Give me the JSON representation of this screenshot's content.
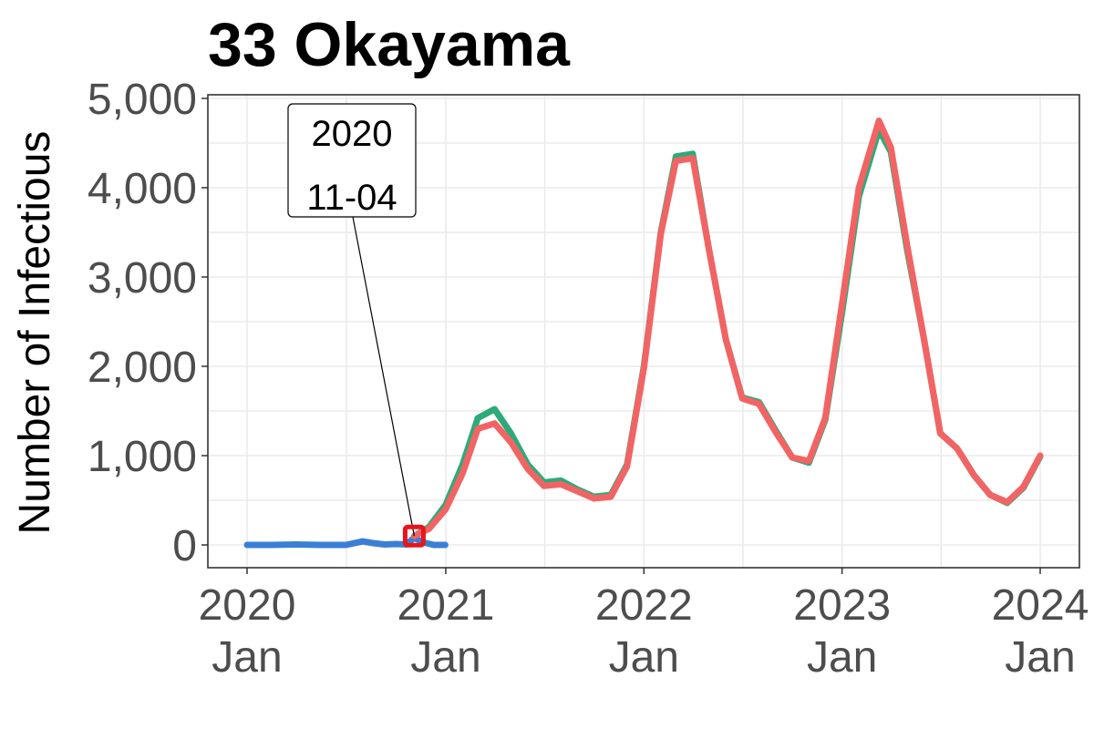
{
  "chart_data": {
    "type": "line",
    "title": "33 Okayama",
    "xlabel": "",
    "ylabel": "Number of Infectious",
    "ylim": [
      0,
      5000
    ],
    "xlim": [
      "2020-01-01",
      "2024-01-01"
    ],
    "yticks": [
      0,
      1000,
      2000,
      3000,
      4000,
      5000
    ],
    "ytick_labels": [
      "0",
      "1,000",
      "2,000",
      "3,000",
      "4,000",
      "5,000"
    ],
    "xticks": [
      "2020-01-01",
      "2021-01-01",
      "2022-01-01",
      "2023-01-01",
      "2024-01-01"
    ],
    "xtick_labels": [
      [
        "2020",
        "Jan"
      ],
      [
        "2021",
        "Jan"
      ],
      [
        "2022",
        "Jan"
      ],
      [
        "2023",
        "Jan"
      ],
      [
        "2024",
        "Jan"
      ]
    ],
    "grid": true,
    "legend": "none",
    "series": [
      {
        "color": "#3a7fd5",
        "points": [
          [
            "2020-01-01",
            0
          ],
          [
            "2020-02-15",
            0
          ],
          [
            "2020-04-01",
            5
          ],
          [
            "2020-05-15",
            0
          ],
          [
            "2020-07-01",
            0
          ],
          [
            "2020-08-01",
            40
          ],
          [
            "2020-08-20",
            20
          ],
          [
            "2020-09-10",
            5
          ],
          [
            "2020-10-01",
            10
          ],
          [
            "2020-10-20",
            5
          ],
          [
            "2020-11-04",
            80
          ],
          [
            "2020-11-20",
            30
          ],
          [
            "2020-12-10",
            0
          ],
          [
            "2020-12-31",
            0
          ]
        ]
      },
      {
        "color": "#2eaa7a",
        "points": [
          [
            "2020-11-04",
            100
          ],
          [
            "2020-12-01",
            200
          ],
          [
            "2021-01-01",
            450
          ],
          [
            "2021-02-01",
            900
          ],
          [
            "2021-03-01",
            1420
          ],
          [
            "2021-04-01",
            1520
          ],
          [
            "2021-05-01",
            1250
          ],
          [
            "2021-06-01",
            900
          ],
          [
            "2021-07-01",
            700
          ],
          [
            "2021-08-01",
            720
          ],
          [
            "2021-09-01",
            620
          ],
          [
            "2021-10-01",
            540
          ],
          [
            "2021-11-01",
            560
          ],
          [
            "2021-12-01",
            900
          ],
          [
            "2022-01-01",
            2000
          ],
          [
            "2022-02-01",
            3500
          ],
          [
            "2022-03-01",
            4350
          ],
          [
            "2022-04-01",
            4380
          ],
          [
            "2022-05-01",
            3300
          ],
          [
            "2022-06-01",
            2300
          ],
          [
            "2022-07-01",
            1650
          ],
          [
            "2022-08-01",
            1600
          ],
          [
            "2022-09-01",
            1280
          ],
          [
            "2022-10-01",
            980
          ],
          [
            "2022-11-01",
            920
          ],
          [
            "2022-12-01",
            1400
          ],
          [
            "2023-01-01",
            2600
          ],
          [
            "2023-02-01",
            3900
          ],
          [
            "2023-03-10",
            4650
          ],
          [
            "2023-04-01",
            4400
          ],
          [
            "2023-05-01",
            3300
          ],
          [
            "2023-06-01",
            2300
          ],
          [
            "2023-07-01",
            1250
          ],
          [
            "2023-08-01",
            1080
          ],
          [
            "2023-09-01",
            780
          ],
          [
            "2023-10-01",
            560
          ],
          [
            "2023-11-01",
            470
          ],
          [
            "2023-12-01",
            640
          ],
          [
            "2024-01-01",
            990
          ]
        ]
      },
      {
        "color": "#f26464",
        "points": [
          [
            "2020-11-04",
            100
          ],
          [
            "2020-12-01",
            180
          ],
          [
            "2021-01-01",
            400
          ],
          [
            "2021-02-01",
            800
          ],
          [
            "2021-03-01",
            1300
          ],
          [
            "2021-04-01",
            1360
          ],
          [
            "2021-05-01",
            1150
          ],
          [
            "2021-06-01",
            850
          ],
          [
            "2021-07-01",
            660
          ],
          [
            "2021-08-01",
            680
          ],
          [
            "2021-09-01",
            600
          ],
          [
            "2021-10-01",
            520
          ],
          [
            "2021-11-01",
            540
          ],
          [
            "2021-12-01",
            880
          ],
          [
            "2022-01-01",
            1980
          ],
          [
            "2022-02-01",
            3480
          ],
          [
            "2022-03-01",
            4300
          ],
          [
            "2022-04-01",
            4330
          ],
          [
            "2022-05-01",
            3300
          ],
          [
            "2022-06-01",
            2300
          ],
          [
            "2022-07-01",
            1640
          ],
          [
            "2022-08-01",
            1580
          ],
          [
            "2022-09-01",
            1260
          ],
          [
            "2022-10-01",
            980
          ],
          [
            "2022-11-01",
            940
          ],
          [
            "2022-12-01",
            1420
          ],
          [
            "2023-01-01",
            2700
          ],
          [
            "2023-02-01",
            4000
          ],
          [
            "2023-03-10",
            4750
          ],
          [
            "2023-04-01",
            4450
          ],
          [
            "2023-05-01",
            3350
          ],
          [
            "2023-06-01",
            2300
          ],
          [
            "2023-07-01",
            1250
          ],
          [
            "2023-08-01",
            1080
          ],
          [
            "2023-09-01",
            780
          ],
          [
            "2023-10-01",
            560
          ],
          [
            "2023-11-01",
            480
          ],
          [
            "2023-12-01",
            650
          ],
          [
            "2024-01-01",
            1000
          ]
        ]
      }
    ],
    "annotation": {
      "lines": [
        "2020",
        "11-04"
      ],
      "x": "2020-11-04",
      "y": 100,
      "marker_color": "#e8141c"
    }
  }
}
